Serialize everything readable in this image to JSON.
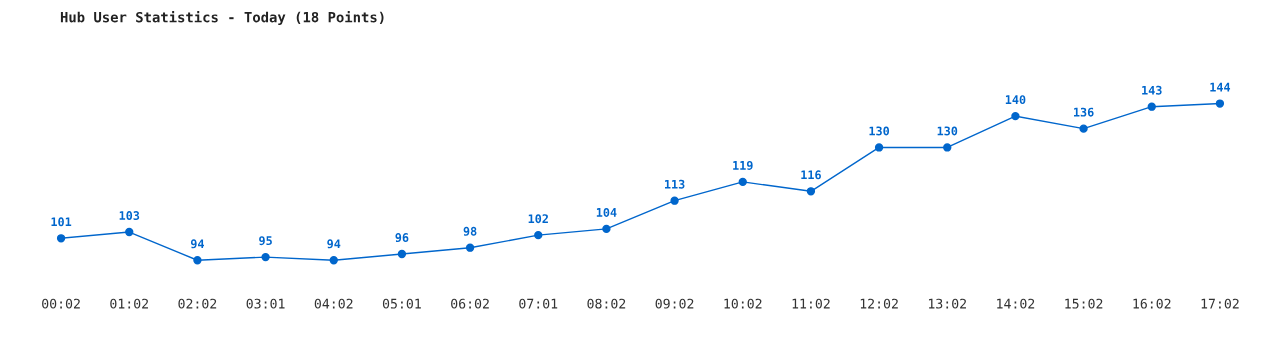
{
  "chart_data": {
    "type": "line",
    "title": "Hub User Statistics - Today (18 Points)",
    "categories": [
      "00:02",
      "01:02",
      "02:02",
      "03:01",
      "04:02",
      "05:01",
      "06:02",
      "07:01",
      "08:02",
      "09:02",
      "10:02",
      "11:02",
      "12:02",
      "13:02",
      "14:02",
      "15:02",
      "16:02",
      "17:02"
    ],
    "series": [
      {
        "color": "#0066cc",
        "values": [
          101,
          103,
          94,
          95,
          94,
          96,
          98,
          102,
          104,
          113,
          119,
          116,
          130,
          130,
          140,
          136,
          143,
          144
        ]
      }
    ],
    "data_labels": true,
    "marker": "circle",
    "line_style": "solid",
    "tick_labels": "x"
  }
}
